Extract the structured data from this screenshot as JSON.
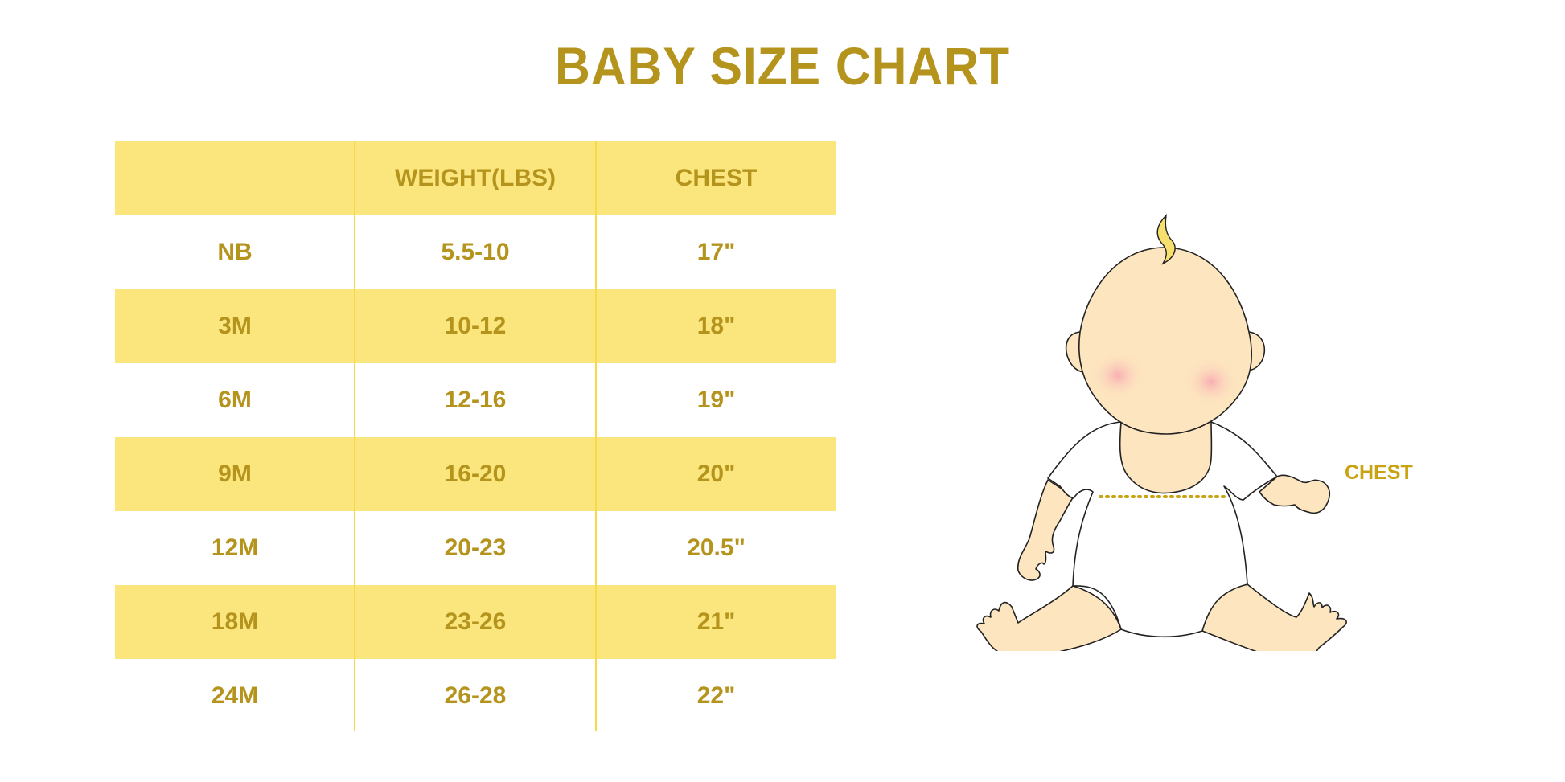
{
  "title": "BABY SIZE CHART",
  "table": {
    "headers": [
      "",
      "WEIGHT(LBS)",
      "CHEST"
    ],
    "rows": [
      [
        "NB",
        "5.5-10",
        "17\""
      ],
      [
        "3M",
        "10-12",
        "18\""
      ],
      [
        "6M",
        "12-16",
        "19\""
      ],
      [
        "9M",
        "16-20",
        "20\""
      ],
      [
        "12M",
        "20-23",
        "20.5\""
      ],
      [
        "18M",
        "23-26",
        "21\""
      ],
      [
        "24M",
        "26-28",
        "22\""
      ]
    ]
  },
  "illustration": {
    "chest_label": "CHEST"
  },
  "colors": {
    "text_gold": "#b5941e",
    "row_yellow": "#fbe57d",
    "divider": "#f9d94a",
    "skin": "#fde5bf"
  }
}
